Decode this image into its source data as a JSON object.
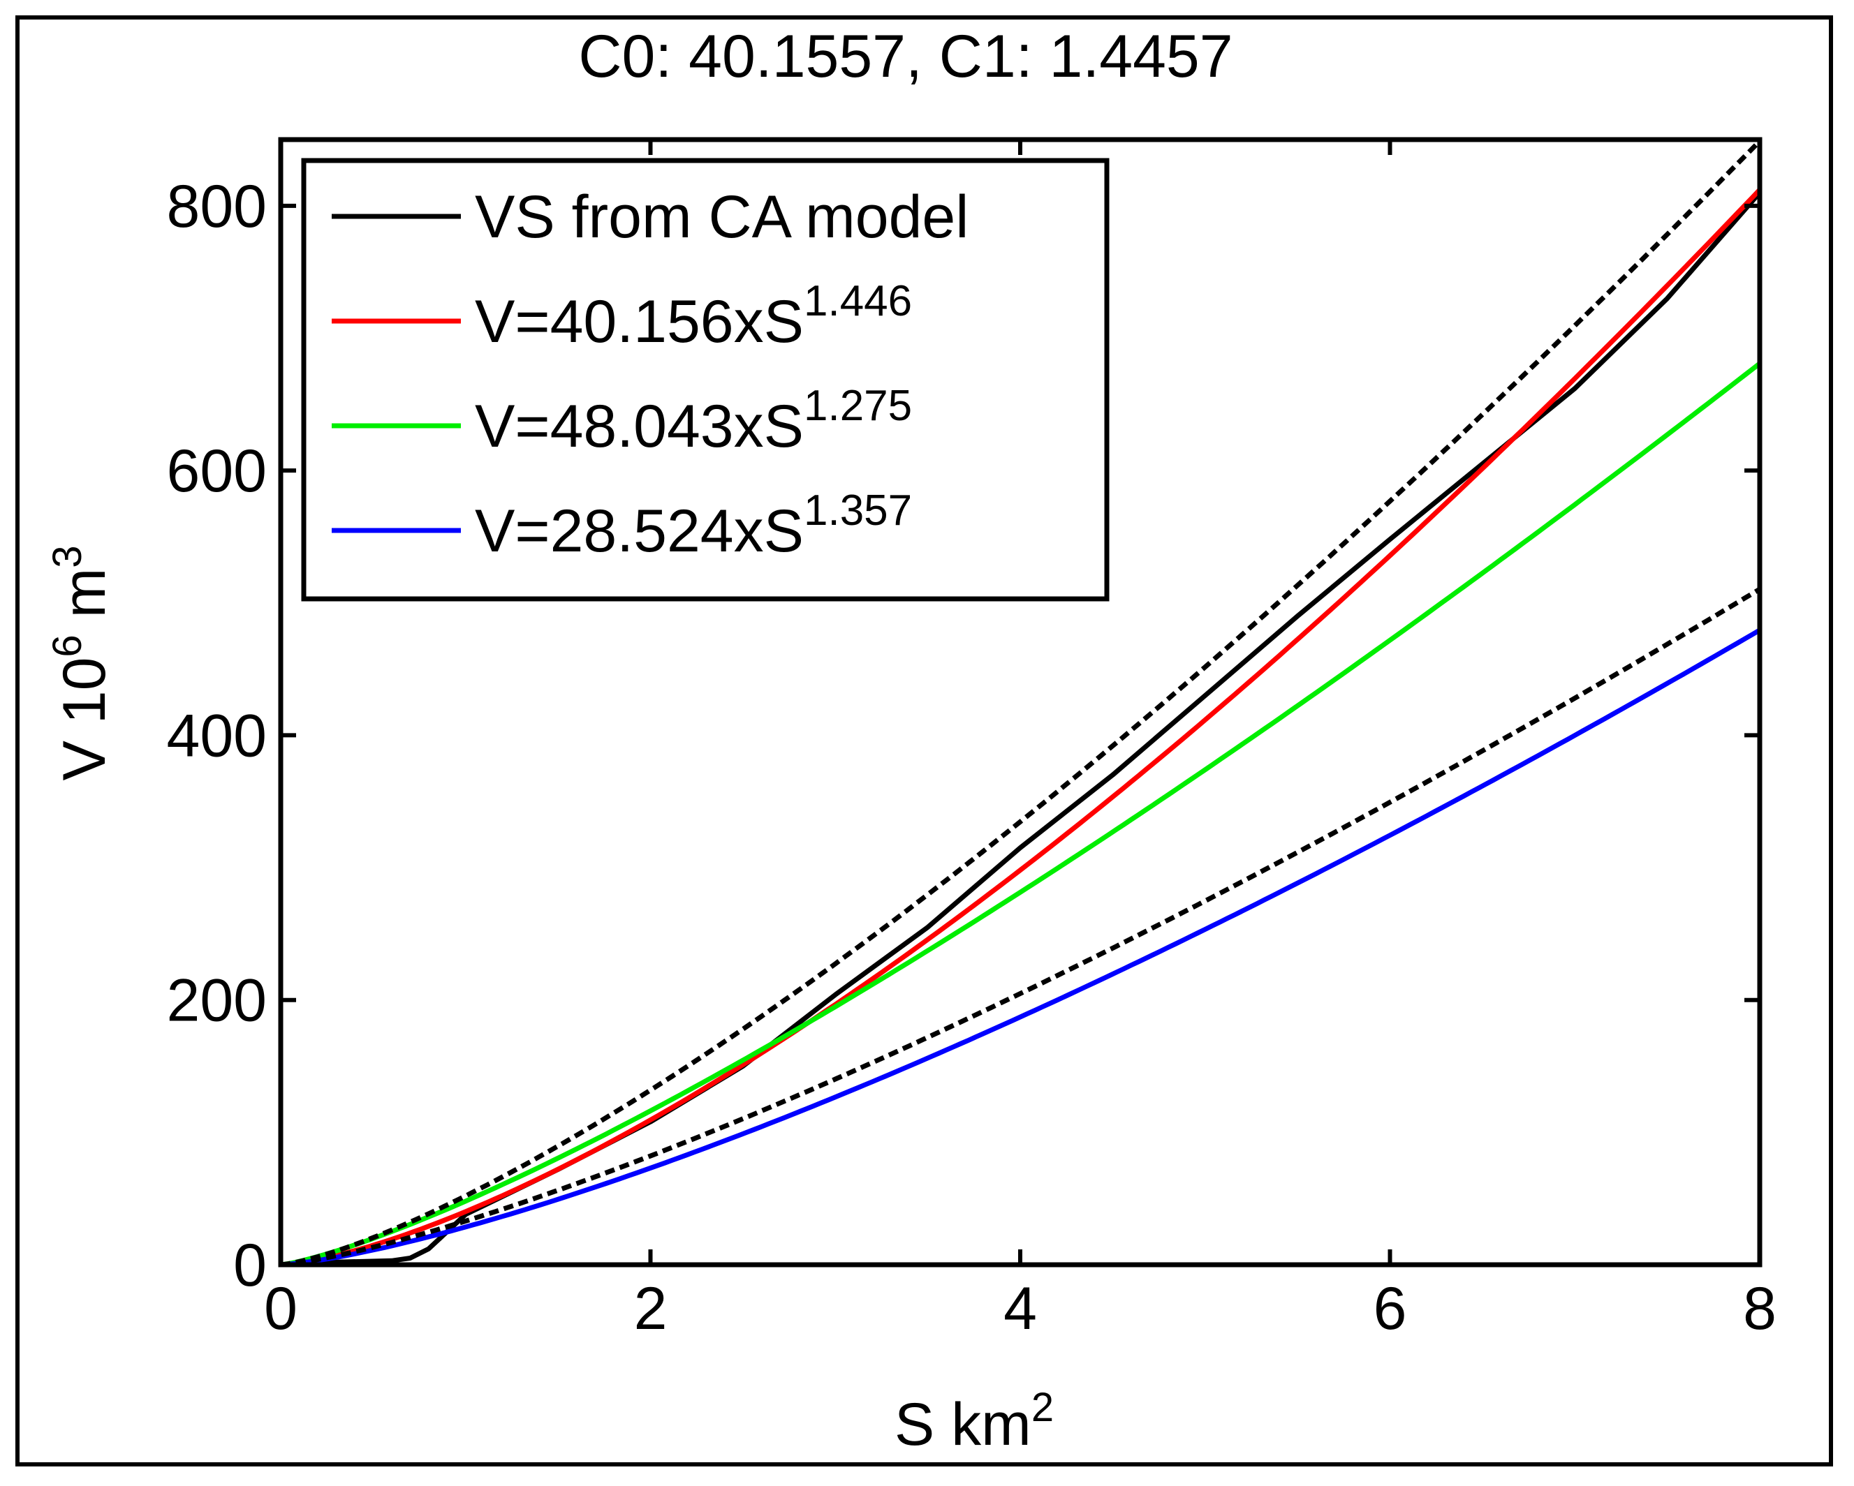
{
  "chart_data": {
    "type": "line",
    "title": "C0: 40.1557, C1: 1.4457",
    "xlabel": {
      "base": "S km",
      "sup": "2"
    },
    "ylabel": {
      "base": "V 10",
      "sup1": "6",
      "mid": " m",
      "sup2": "3"
    },
    "xlim": [
      0,
      8
    ],
    "ylim": [
      0,
      850
    ],
    "xticks": [
      0,
      2,
      4,
      6,
      8
    ],
    "yticks": [
      0,
      200,
      400,
      600,
      800
    ],
    "grid": false,
    "legend_position": "top-left",
    "series": [
      {
        "name": "VS from CA model",
        "label": {
          "base": "VS from CA model",
          "sup": ""
        },
        "color": "#000000",
        "style": "solid",
        "x": [
          0,
          0.3,
          0.6,
          0.7,
          0.8,
          0.9,
          1.0,
          1.5,
          2.0,
          2.5,
          3.0,
          3.5,
          4.0,
          4.5,
          5.0,
          5.5,
          6.0,
          6.5,
          7.0,
          7.5,
          8.0
        ],
        "y": [
          0,
          2,
          3,
          5,
          12,
          25,
          38,
          72,
          108,
          150,
          204,
          255,
          315,
          370,
          430,
          490,
          548,
          605,
          662,
          730,
          810
        ]
      },
      {
        "name": "V=40.156xS^1.446",
        "label": {
          "base": "V=40.156xS",
          "sup": "1.446"
        },
        "color": "#ff0000",
        "style": "solid",
        "formula": {
          "a": 40.156,
          "b": 1.446
        }
      },
      {
        "name": "V=48.043xS^1.275",
        "label": {
          "base": "V=48.043xS",
          "sup": "1.275"
        },
        "color": "#00ee00",
        "style": "solid",
        "formula": {
          "a": 48.043,
          "b": 1.275
        }
      },
      {
        "name": "V=28.524xS^1.357",
        "label": {
          "base": "V=28.524xS",
          "sup": "1.357"
        },
        "color": "#0000ff",
        "style": "solid",
        "formula": {
          "a": 28.524,
          "b": 1.357
        }
      },
      {
        "name": "upper bound",
        "color": "#000000",
        "style": "dashed",
        "in_legend": false,
        "formula": {
          "a": 52.0,
          "b": 1.343
        }
      },
      {
        "name": "lower bound",
        "color": "#000000",
        "style": "dashed",
        "in_legend": false,
        "formula": {
          "a": 33.0,
          "b": 1.317
        }
      }
    ]
  }
}
